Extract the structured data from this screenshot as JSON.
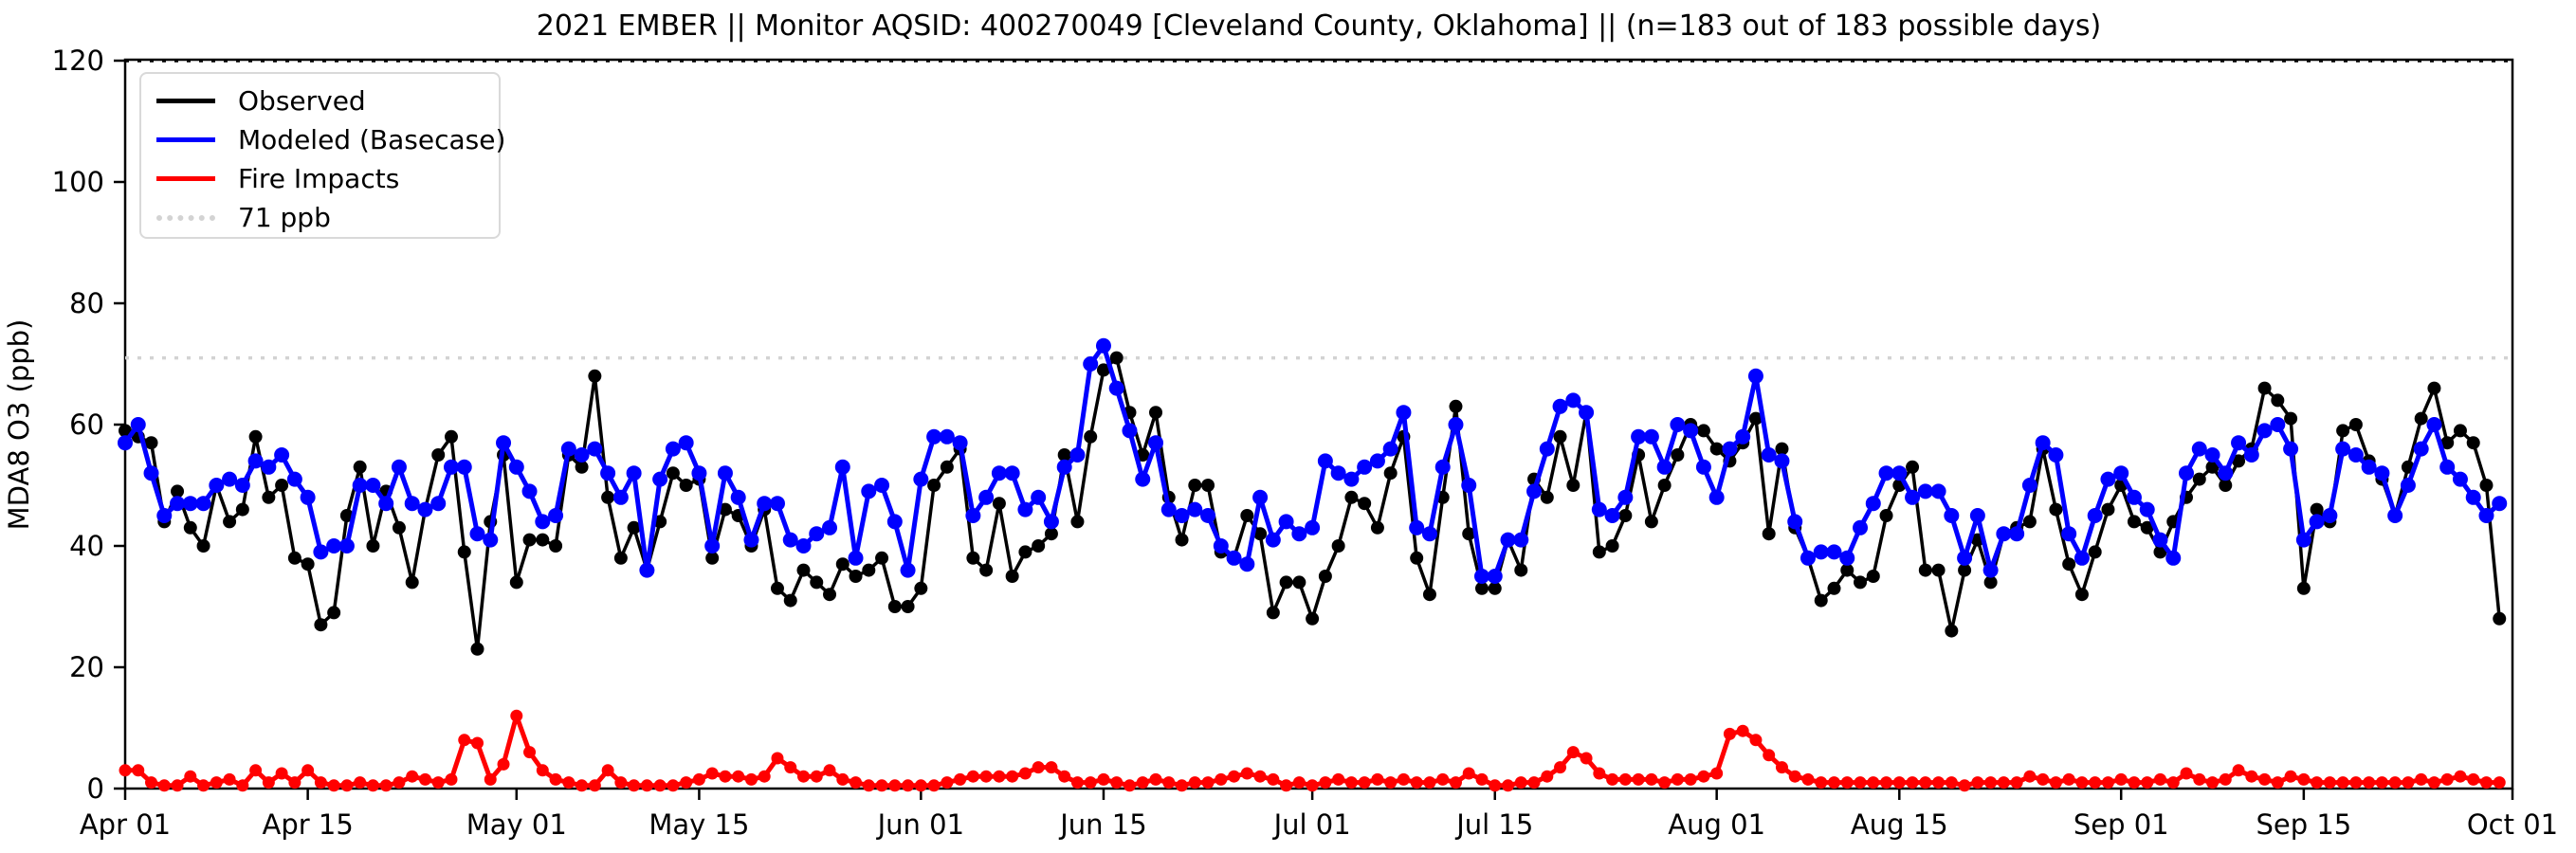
{
  "title": "2021 EMBER || Monitor AQSID: 400270049 [Cleveland County, Oklahoma] || (n=183 out of 183 possible days)",
  "legend": {
    "items": [
      {
        "label": "Observed",
        "color": "#000000",
        "style": "solid"
      },
      {
        "label": "Modeled (Basecase)",
        "color": "#0000ff",
        "style": "solid"
      },
      {
        "label": "Fire Impacts",
        "color": "#ff0000",
        "style": "solid"
      },
      {
        "label": "71 ppb",
        "color": "#d3d3d3",
        "style": "dotted"
      }
    ]
  },
  "chart_data": {
    "type": "line",
    "title": "2021 EMBER || Monitor AQSID: 400270049 [Cleveland County, Oklahoma] || (n=183 out of 183 possible days)",
    "xlabel": "",
    "ylabel": "MDA8 O3 (ppb)",
    "ylim": [
      0,
      120
    ],
    "yticks": [
      0,
      20,
      40,
      60,
      80,
      100,
      120
    ],
    "x_start": "2021-04-01",
    "x_end": "2021-09-30",
    "n_points": 183,
    "grid": false,
    "legend_position": "upper left",
    "xticks": [
      {
        "day": 0,
        "label": "Apr 01"
      },
      {
        "day": 14,
        "label": "Apr 15"
      },
      {
        "day": 30,
        "label": "May 01"
      },
      {
        "day": 44,
        "label": "May 15"
      },
      {
        "day": 61,
        "label": "Jun 01"
      },
      {
        "day": 75,
        "label": "Jun 15"
      },
      {
        "day": 91,
        "label": "Jul 01"
      },
      {
        "day": 105,
        "label": "Jul 15"
      },
      {
        "day": 122,
        "label": "Aug 01"
      },
      {
        "day": 136,
        "label": "Aug 15"
      },
      {
        "day": 153,
        "label": "Sep 01"
      },
      {
        "day": 167,
        "label": "Sep 15"
      },
      {
        "day": 183,
        "label": "Oct 01"
      }
    ],
    "thresholds": [
      {
        "value": 120,
        "label": "",
        "color": "#000000",
        "style": "dotted"
      },
      {
        "value": 71,
        "label": "71 ppb",
        "color": "#d3d3d3",
        "style": "dotted"
      }
    ],
    "series": [
      {
        "name": "Observed",
        "color": "#000000",
        "marker": "o",
        "values": [
          59,
          58,
          57,
          44,
          49,
          43,
          40,
          50,
          44,
          46,
          58,
          48,
          50,
          38,
          37,
          27,
          29,
          45,
          53,
          40,
          49,
          43,
          34,
          46,
          55,
          58,
          39,
          23,
          44,
          55,
          34,
          41,
          41,
          40,
          55,
          53,
          68,
          48,
          38,
          43,
          36,
          44,
          52,
          50,
          51,
          38,
          46,
          45,
          40,
          46,
          33,
          31,
          36,
          34,
          32,
          37,
          35,
          36,
          38,
          30,
          30,
          33,
          50,
          53,
          56,
          38,
          36,
          47,
          35,
          39,
          40,
          42,
          55,
          44,
          58,
          69,
          71,
          62,
          55,
          62,
          48,
          41,
          50,
          50,
          39,
          38,
          45,
          42,
          29,
          34,
          34,
          28,
          35,
          40,
          48,
          47,
          43,
          52,
          58,
          38,
          32,
          48,
          63,
          42,
          33,
          33,
          41,
          36,
          51,
          48,
          58,
          50,
          62,
          39,
          40,
          45,
          55,
          44,
          50,
          55,
          60,
          59,
          56,
          54,
          57,
          61,
          42,
          56,
          43,
          38,
          31,
          33,
          36,
          34,
          35,
          45,
          50,
          53,
          36,
          36,
          26,
          36,
          41,
          34,
          42,
          43,
          44,
          56,
          46,
          37,
          32,
          39,
          46,
          50,
          44,
          43,
          39,
          44,
          48,
          51,
          53,
          50,
          54,
          56,
          66,
          64,
          61,
          33,
          46,
          44,
          59,
          60,
          54,
          51,
          45,
          53,
          61,
          66,
          57,
          59,
          57,
          50,
          28
        ]
      },
      {
        "name": "Modeled (Basecase)",
        "color": "#0000ff",
        "marker": "o",
        "values": [
          57,
          60,
          52,
          45,
          47,
          47,
          47,
          50,
          51,
          50,
          54,
          53,
          55,
          51,
          48,
          39,
          40,
          40,
          50,
          50,
          47,
          53,
          47,
          46,
          47,
          53,
          53,
          42,
          41,
          57,
          53,
          49,
          44,
          45,
          56,
          55,
          56,
          52,
          48,
          52,
          36,
          51,
          56,
          57,
          52,
          40,
          52,
          48,
          41,
          47,
          47,
          41,
          40,
          42,
          43,
          53,
          38,
          49,
          50,
          44,
          36,
          51,
          58,
          58,
          57,
          45,
          48,
          52,
          52,
          46,
          48,
          44,
          53,
          55,
          70,
          73,
          66,
          59,
          51,
          57,
          46,
          45,
          46,
          45,
          40,
          38,
          37,
          48,
          41,
          44,
          42,
          43,
          54,
          52,
          51,
          53,
          54,
          56,
          62,
          43,
          42,
          53,
          60,
          50,
          35,
          35,
          41,
          41,
          49,
          56,
          63,
          64,
          62,
          46,
          45,
          48,
          58,
          58,
          53,
          60,
          59,
          53,
          48,
          56,
          58,
          68,
          55,
          54,
          44,
          38,
          39,
          39,
          38,
          43,
          47,
          52,
          52,
          48,
          49,
          49,
          45,
          38,
          45,
          36,
          42,
          42,
          50,
          57,
          55,
          42,
          38,
          45,
          51,
          52,
          48,
          46,
          41,
          38,
          52,
          56,
          55,
          52,
          57,
          55,
          59,
          60,
          56,
          41,
          44,
          45,
          56,
          55,
          53,
          52,
          45,
          50,
          56,
          60,
          53,
          51,
          48,
          45,
          47
        ]
      },
      {
        "name": "Fire Impacts",
        "color": "#ff0000",
        "marker": "o",
        "values": [
          3,
          3,
          1,
          0.5,
          0.5,
          2,
          0.5,
          1,
          1.5,
          0.5,
          3,
          1,
          2.5,
          1,
          3,
          1,
          0.5,
          0.5,
          1,
          0.5,
          0.5,
          1,
          2,
          1.5,
          1,
          1.5,
          8,
          7.5,
          1.5,
          4,
          12,
          6,
          3,
          1.5,
          1,
          0.5,
          0.5,
          3,
          1,
          0.5,
          0.5,
          0.5,
          0.5,
          1,
          1.5,
          2.5,
          2,
          2,
          1.5,
          2,
          5,
          3.5,
          2,
          2,
          3,
          1.5,
          1,
          0.5,
          0.5,
          0.5,
          0.5,
          0.5,
          0.5,
          1,
          1.5,
          2,
          2,
          2,
          2,
          2.5,
          3.5,
          3.5,
          2,
          1,
          1,
          1.5,
          1,
          0.5,
          1,
          1.5,
          1,
          0.5,
          1,
          1,
          1.5,
          2,
          2.5,
          2,
          1.5,
          0.5,
          1,
          0.5,
          1,
          1.5,
          1,
          1,
          1.5,
          1,
          1.5,
          1,
          1,
          1.5,
          1,
          2.5,
          1.5,
          0.5,
          0.5,
          1,
          1,
          2,
          3.5,
          6,
          5,
          2.5,
          1.5,
          1.5,
          1.5,
          1.5,
          1,
          1.5,
          1.5,
          2,
          2.5,
          9,
          9.5,
          8,
          5.5,
          3.5,
          2,
          1.5,
          1,
          1,
          1,
          1,
          1,
          1,
          1,
          1,
          1,
          1,
          1,
          0.5,
          1,
          1,
          1,
          1,
          2,
          1.5,
          1,
          1.5,
          1,
          1,
          1,
          1.5,
          1,
          1,
          1.5,
          1,
          2.5,
          1.5,
          1,
          1.5,
          3,
          2,
          1.5,
          1,
          2,
          1.5,
          1,
          1,
          1,
          1,
          1,
          1,
          1,
          1,
          1.5,
          1,
          1.5,
          2,
          1.5,
          1,
          1
        ]
      }
    ]
  }
}
